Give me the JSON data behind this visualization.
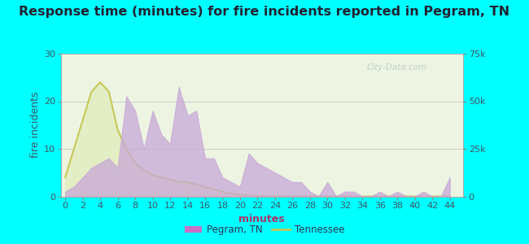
{
  "title": "Response time (minutes) for fire incidents reported in Pegram, TN",
  "xlabel": "minutes",
  "ylabel_left": "fire incidents",
  "background_outer": "#00FFFF",
  "x_ticks": [
    0,
    2,
    4,
    6,
    8,
    10,
    12,
    14,
    16,
    18,
    20,
    22,
    24,
    26,
    28,
    30,
    32,
    34,
    36,
    38,
    40,
    42,
    44
  ],
  "xlim": [
    -0.5,
    45.5
  ],
  "ylim_left": [
    0,
    30
  ],
  "ylim_right": [
    0,
    75000
  ],
  "yticks_left": [
    0,
    10,
    20,
    30
  ],
  "yticks_right": [
    0,
    25000,
    50000,
    75000
  ],
  "ytick_labels_right": [
    "0",
    "25k",
    "50k",
    "75k"
  ],
  "pegram_x": [
    0,
    1,
    2,
    3,
    4,
    5,
    6,
    7,
    8,
    9,
    10,
    11,
    12,
    13,
    14,
    15,
    16,
    17,
    18,
    19,
    20,
    21,
    22,
    23,
    24,
    25,
    26,
    27,
    28,
    29,
    30,
    31,
    32,
    33,
    34,
    35,
    36,
    37,
    38,
    39,
    40,
    41,
    42,
    43,
    44
  ],
  "pegram_y": [
    1,
    2,
    4,
    6,
    7,
    8,
    6,
    21,
    18,
    10,
    18,
    13,
    11,
    23,
    17,
    18,
    8,
    8,
    4,
    3,
    2,
    9,
    7,
    6,
    5,
    4,
    3,
    3,
    1,
    0,
    3,
    0,
    1,
    1,
    0,
    0,
    1,
    0,
    1,
    0,
    0,
    1,
    0,
    0,
    4
  ],
  "tn_x": [
    0,
    1,
    2,
    3,
    4,
    5,
    6,
    7,
    8,
    9,
    10,
    11,
    12,
    13,
    14,
    15,
    16,
    17,
    18,
    19,
    20,
    21,
    22,
    23,
    24,
    25,
    26,
    27,
    28,
    29,
    30,
    44
  ],
  "tn_y": [
    4,
    10,
    16,
    22,
    24,
    22,
    14,
    10,
    7,
    5.5,
    4.5,
    4,
    3.5,
    3,
    3,
    2.5,
    2,
    1.5,
    1,
    0.6,
    0.3,
    0.2,
    0.1,
    0.05,
    0.05,
    0.03,
    0.02,
    0.01,
    0.01,
    0,
    0,
    0
  ],
  "pegram_fill_color": "#c8a8d8",
  "pegram_fill_alpha": 0.75,
  "tn_line_color": "#c8c858",
  "tn_fill_color": "#e4eec4",
  "grid_color": "#cccccc",
  "title_fontsize": 11.5,
  "label_fontsize": 9,
  "tick_fontsize": 8,
  "legend_pegram_color": "#e060c0",
  "legend_tn_color": "#c8c858",
  "watermark_text": "City-Data.com",
  "watermark_color": "#aabbbb",
  "watermark_alpha": 0.65
}
